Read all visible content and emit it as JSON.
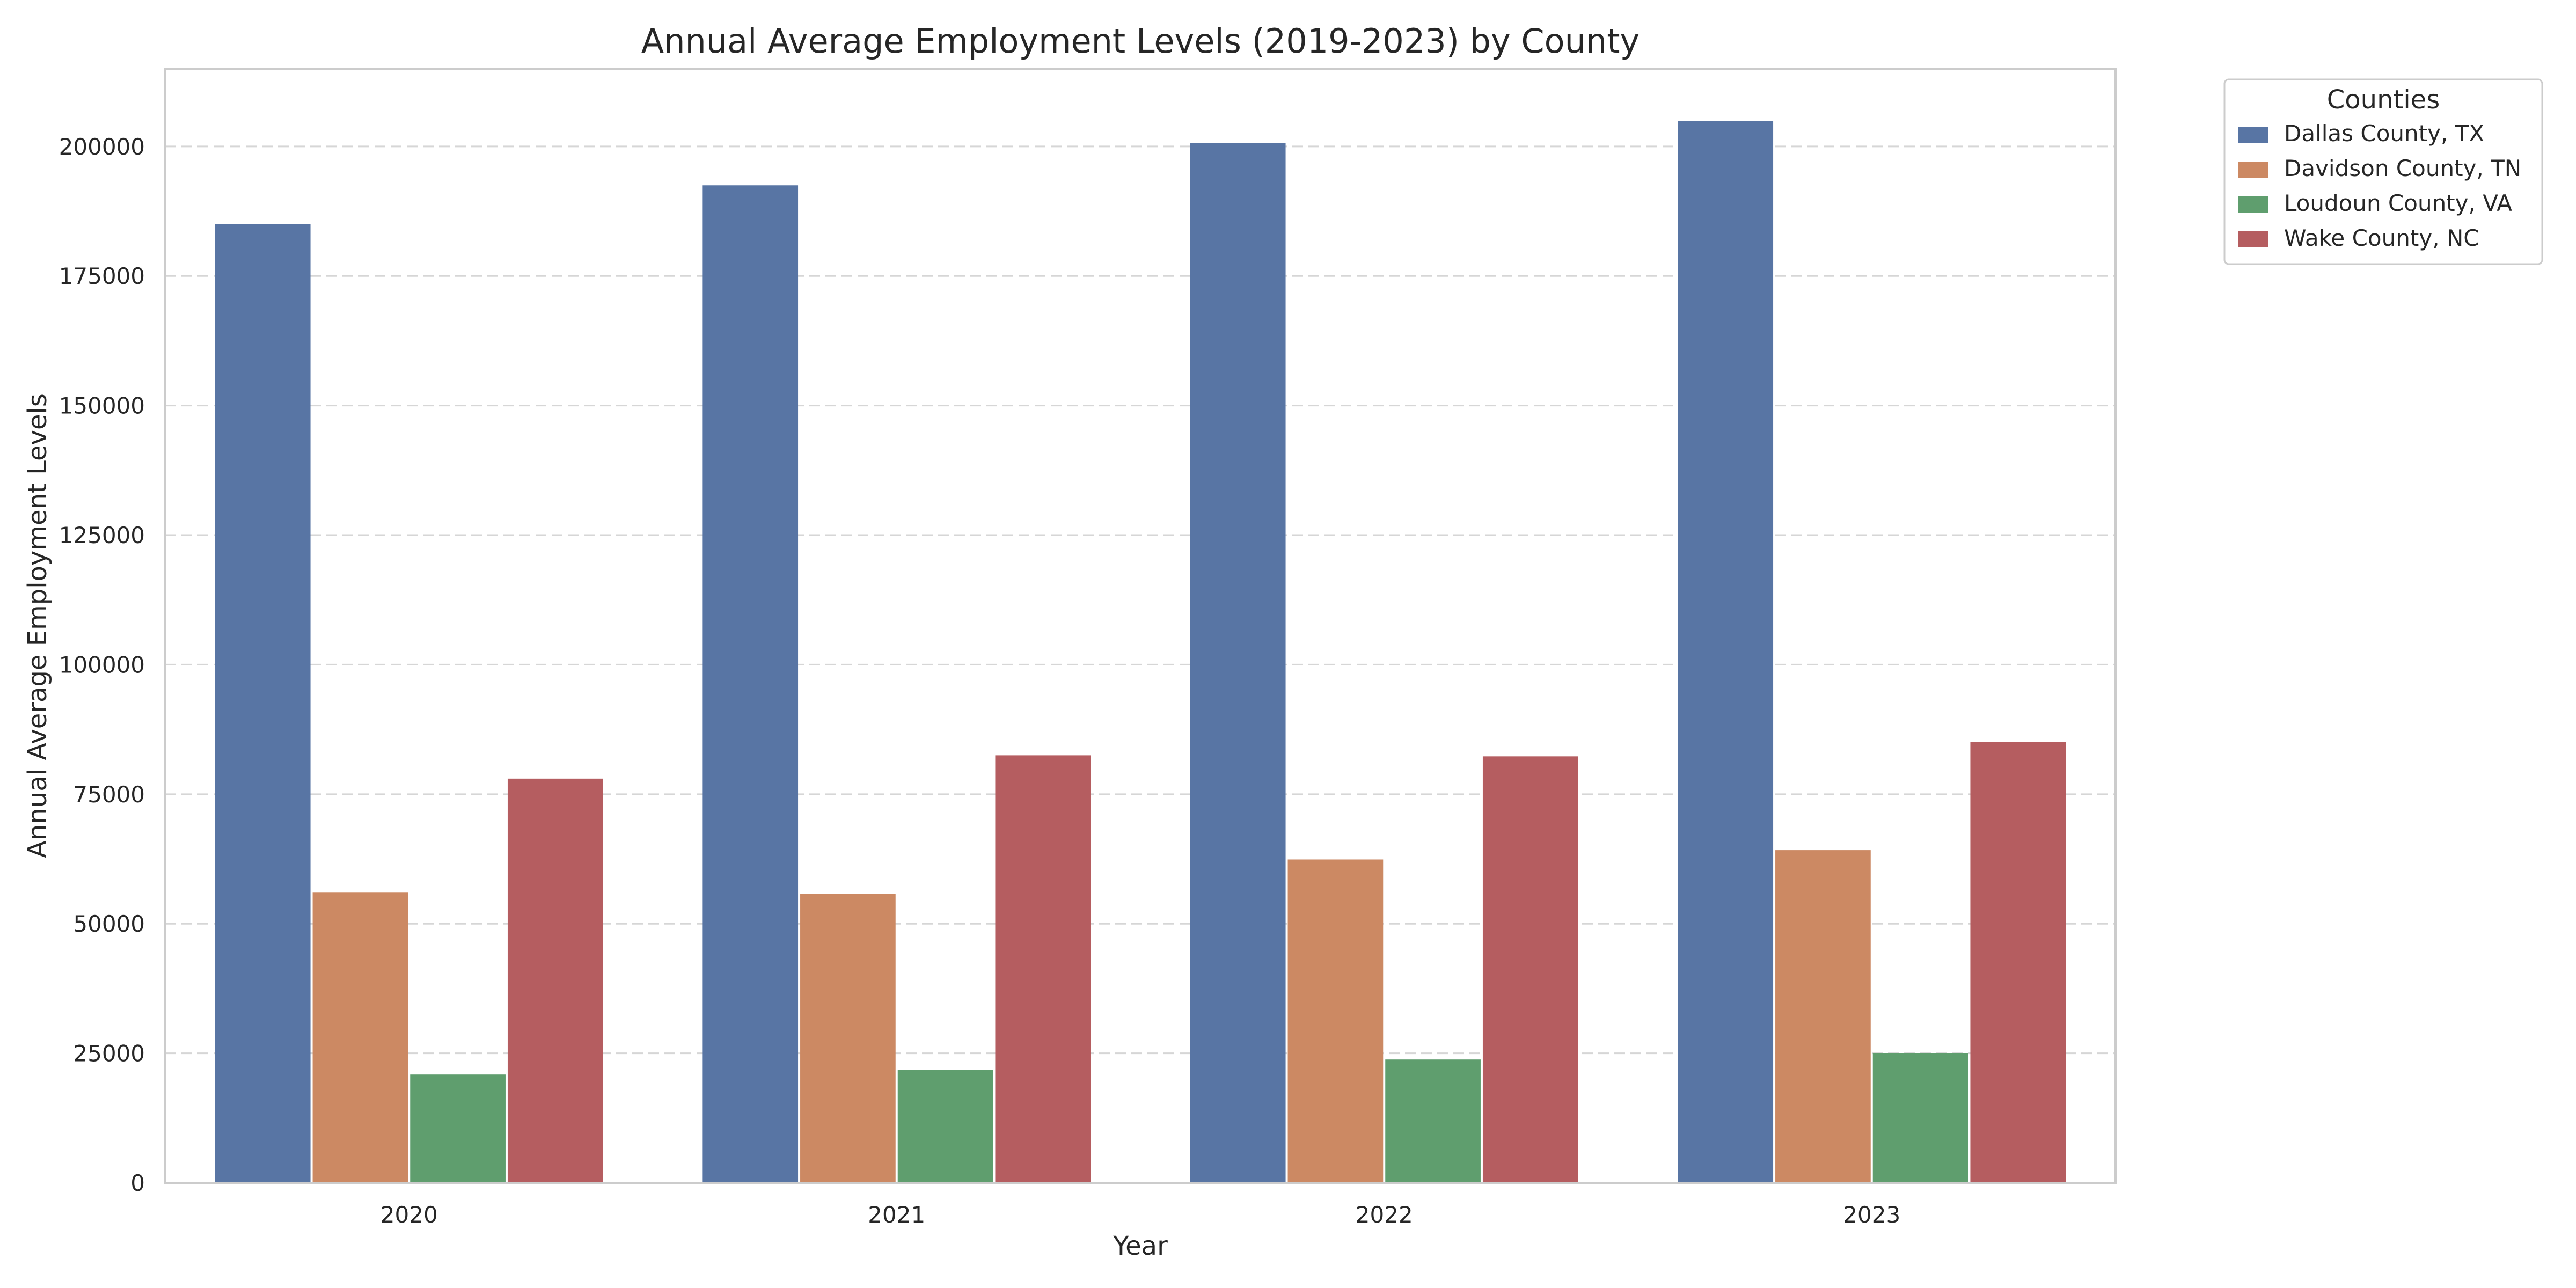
{
  "chart_data": {
    "type": "bar",
    "title": "Annual Average Employment Levels (2019-2023) by County",
    "xlabel": "Year",
    "ylabel": "Annual Average Employment Levels",
    "categories": [
      "2020",
      "2021",
      "2022",
      "2023"
    ],
    "ylim": [
      0,
      215000
    ],
    "yticks": [
      0,
      25000,
      50000,
      75000,
      100000,
      125000,
      150000,
      175000,
      200000
    ],
    "grid": "horizontal dashed",
    "legend": {
      "title": "Counties",
      "placement": "outside upper right"
    },
    "series": [
      {
        "name": "Dallas County, TX",
        "color": "#5875a4",
        "values": [
          185000,
          192500,
          200700,
          204900
        ]
      },
      {
        "name": "Davidson County, TN",
        "color": "#cc8963",
        "values": [
          56000,
          55800,
          62400,
          64200
        ]
      },
      {
        "name": "Loudoun County, VA",
        "color": "#5f9e6e",
        "values": [
          20900,
          21800,
          23800,
          25000
        ]
      },
      {
        "name": "Wake County, NC",
        "color": "#b55d60",
        "values": [
          78000,
          82500,
          82300,
          85100
        ]
      }
    ]
  }
}
